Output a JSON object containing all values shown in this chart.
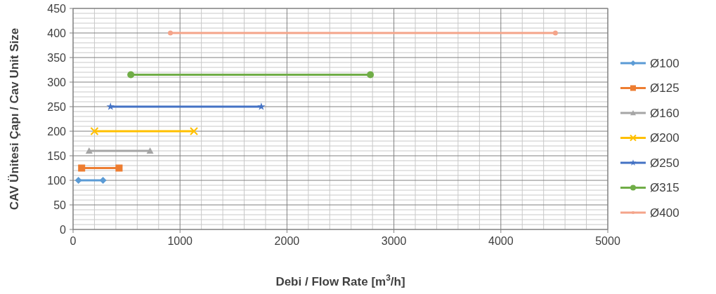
{
  "chart_data": {
    "type": "line",
    "xlabel": "Debi / Flow Rate [m$^{3}$/h]",
    "ylabel": "CAV Ünitesi Çapı / Cav Unit Size",
    "xlim": [
      0,
      5000
    ],
    "xticks": [
      0,
      1000,
      2000,
      3000,
      4000,
      5000
    ],
    "ylim": [
      0,
      450
    ],
    "yticks": [
      0,
      50,
      100,
      150,
      200,
      250,
      300,
      350,
      400,
      450
    ],
    "grid": true,
    "legend": "right",
    "series": [
      {
        "name": "Ø100",
        "color": "#5b9bd5",
        "marker": "diamond",
        "x": [
          50,
          280
        ],
        "values": [
          100,
          100
        ]
      },
      {
        "name": "Ø125",
        "color": "#ed7d31",
        "marker": "square",
        "x": [
          80,
          430
        ],
        "values": [
          125,
          125
        ]
      },
      {
        "name": "Ø160",
        "color": "#a5a5a5",
        "marker": "triangle",
        "x": [
          150,
          720
        ],
        "values": [
          160,
          160
        ]
      },
      {
        "name": "Ø200",
        "color": "#ffc000",
        "marker": "cross",
        "x": [
          200,
          1130
        ],
        "values": [
          200,
          200
        ]
      },
      {
        "name": "Ø250",
        "color": "#4472c4",
        "marker": "star",
        "x": [
          350,
          1760
        ],
        "values": [
          250,
          250
        ]
      },
      {
        "name": "Ø315",
        "color": "#70ad47",
        "marker": "circle",
        "x": [
          540,
          2780
        ],
        "values": [
          315,
          315
        ]
      },
      {
        "name": "Ø400",
        "color": "#f4a48a",
        "marker": "circle",
        "x": [
          910,
          4510
        ],
        "values": [
          400,
          400
        ]
      }
    ]
  }
}
